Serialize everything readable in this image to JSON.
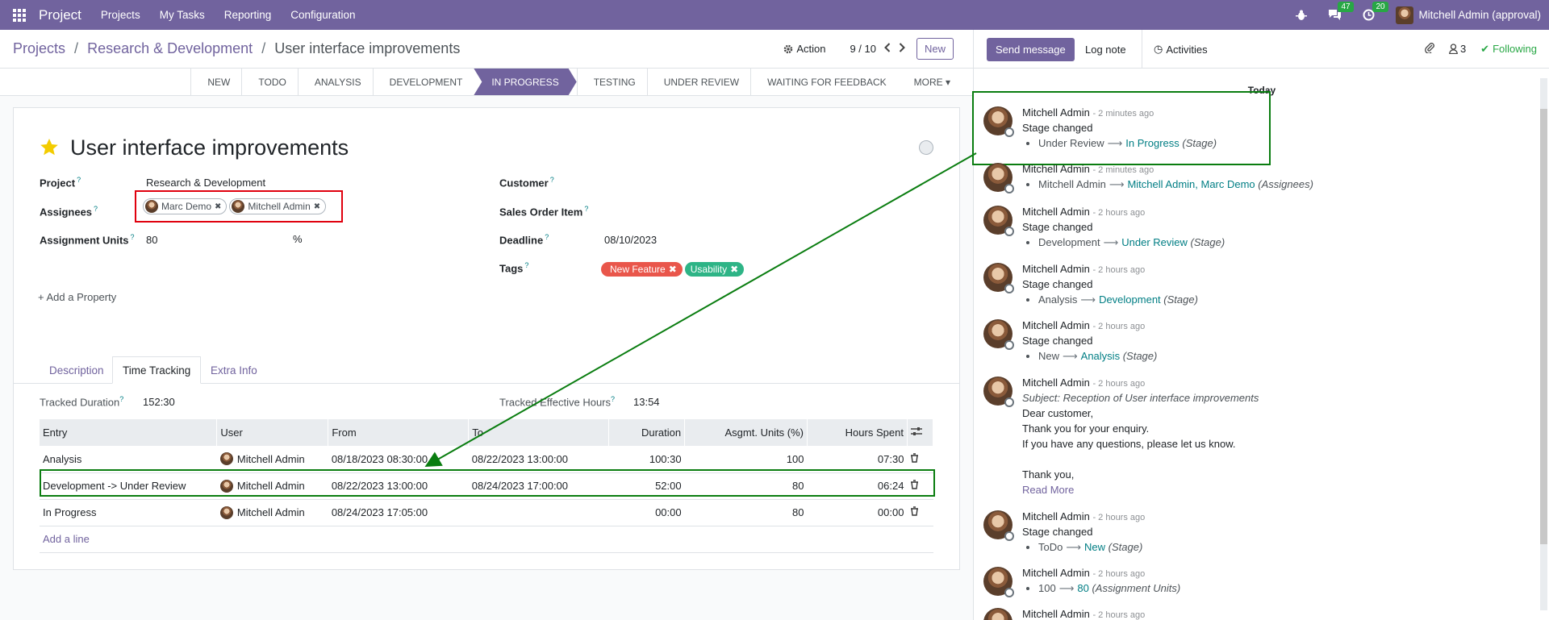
{
  "navbar": {
    "brand": "Project",
    "menu": [
      "Projects",
      "My Tasks",
      "Reporting",
      "Configuration"
    ],
    "messages_count": "47",
    "activities_count": "20",
    "user": "Mitchell Admin (approval)"
  },
  "breadcrumb": {
    "root": "Projects",
    "project": "Research & Development",
    "current": "User interface improvements"
  },
  "control": {
    "action_label": "Action",
    "pager": "9 / 10",
    "new_label": "New"
  },
  "stages": [
    "NEW",
    "TODO",
    "ANALYSIS",
    "DEVELOPMENT",
    "IN PROGRESS",
    "TESTING",
    "UNDER REVIEW",
    "WAITING FOR FEEDBACK",
    "MORE"
  ],
  "task": {
    "title": "User interface improvements",
    "fields": {
      "project_label": "Project",
      "project_value": "Research & Development",
      "assignees_label": "Assignees",
      "assignees": [
        "Marc Demo",
        "Mitchell Admin"
      ],
      "units_label": "Assignment Units",
      "units_value": "80",
      "units_suffix": "%",
      "customer_label": "Customer",
      "sales_order_label": "Sales Order Item",
      "deadline_label": "Deadline",
      "deadline_value": "08/10/2023",
      "tags_label": "Tags",
      "tags": [
        {
          "name": "New Feature",
          "color": "#e9564b"
        },
        {
          "name": "Usability",
          "color": "#2eb486"
        }
      ],
      "help_mark": "?"
    },
    "add_property": "Add a Property"
  },
  "tabs": [
    "Description",
    "Time Tracking",
    "Extra Info"
  ],
  "time_tracking": {
    "tracked_duration_label": "Tracked Duration",
    "tracked_duration_value": "152:30",
    "tracked_effective_label": "Tracked Effective Hours",
    "tracked_effective_value": "13:54",
    "columns": [
      "Entry",
      "User",
      "From",
      "To",
      "Duration",
      "Asgmt. Units (%)",
      "Hours Spent"
    ],
    "rows": [
      {
        "entry": "Analysis",
        "user": "Mitchell Admin",
        "from": "08/18/2023 08:30:00",
        "to": "08/22/2023 13:00:00",
        "duration": "100:30",
        "units": "100",
        "hours": "07:30"
      },
      {
        "entry": "Development -> Under Review",
        "user": "Mitchell Admin",
        "from": "08/22/2023 13:00:00",
        "to": "08/24/2023 17:00:00",
        "duration": "52:00",
        "units": "80",
        "hours": "06:24"
      },
      {
        "entry": "In Progress",
        "user": "Mitchell Admin",
        "from": "08/24/2023 17:05:00",
        "to": "",
        "duration": "00:00",
        "units": "80",
        "hours": "00:00"
      }
    ],
    "add_line": "Add a line"
  },
  "chatter": {
    "send_message": "Send message",
    "log_note": "Log note",
    "activities": "Activities",
    "followers_count": "3",
    "following": "Following",
    "today": "Today",
    "messages": [
      {
        "author": "Mitchell Admin",
        "ago": "- 2 minutes ago",
        "line": "Stage changed",
        "old": "Under Review",
        "new": "In Progress",
        "field": "(Stage)"
      },
      {
        "author": "Mitchell Admin",
        "ago": "- 2 minutes ago",
        "line": "",
        "old": "Mitchell Admin",
        "new": "Mitchell Admin, Marc Demo",
        "field": "(Assignees)"
      },
      {
        "author": "Mitchell Admin",
        "ago": "- 2 hours ago",
        "line": "Stage changed",
        "old": "Development",
        "new": "Under Review",
        "field": "(Stage)"
      },
      {
        "author": "Mitchell Admin",
        "ago": "- 2 hours ago",
        "line": "Stage changed",
        "old": "Analysis",
        "new": "Development",
        "field": "(Stage)"
      },
      {
        "author": "Mitchell Admin",
        "ago": "- 2 hours ago",
        "line": "Stage changed",
        "old": "New",
        "new": "Analysis",
        "field": "(Stage)"
      },
      {
        "author": "Mitchell Admin",
        "ago": "- 2 hours ago",
        "subject": "Subject: Reception of User interface improvements",
        "text": [
          "Dear customer,",
          "Thank you for your enquiry.",
          "If you have any questions, please let us know.",
          "",
          "Thank you,"
        ],
        "read_more": "Read More"
      },
      {
        "author": "Mitchell Admin",
        "ago": "- 2 hours ago",
        "line": "Stage changed",
        "old": "ToDo",
        "new": "New",
        "field": "(Stage)"
      },
      {
        "author": "Mitchell Admin",
        "ago": "- 2 hours ago",
        "line": "",
        "old": "100",
        "new": "80",
        "field": "(Assignment Units)"
      },
      {
        "author": "Mitchell Admin",
        "ago": "- 2 hours ago"
      }
    ]
  },
  "colors": {
    "brand": "#71639e",
    "highlight_red": "#e0000e",
    "highlight_green": "#0a7d10",
    "link": "#017e84"
  }
}
